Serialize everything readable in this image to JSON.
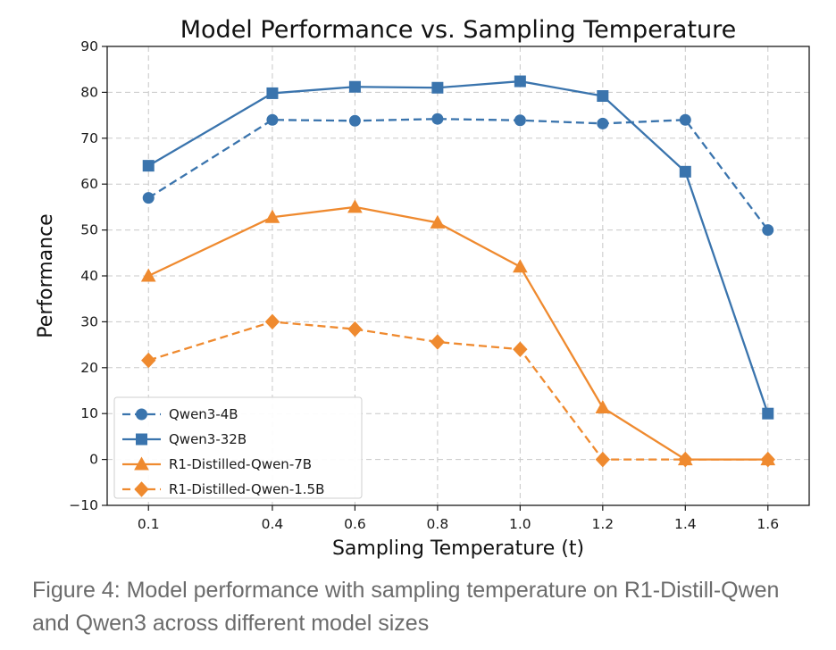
{
  "chart_data": {
    "type": "line",
    "title": "Model Performance vs. Sampling Temperature",
    "xlabel": "Sampling Temperature (t)",
    "ylabel": "Performance",
    "x": [
      0.1,
      0.4,
      0.6,
      0.8,
      1.0,
      1.2,
      1.4,
      1.6
    ],
    "x_tick_labels": [
      "0.1",
      "0.4",
      "0.6",
      "0.8",
      "1.0",
      "1.2",
      "1.4",
      "1.6"
    ],
    "y_ticks": [
      -10,
      0,
      10,
      20,
      30,
      40,
      50,
      60,
      70,
      80,
      90
    ],
    "y_tick_labels": [
      "−10",
      "0",
      "10",
      "20",
      "30",
      "40",
      "50",
      "60",
      "70",
      "80",
      "90"
    ],
    "xlim": [
      0.0,
      1.7
    ],
    "ylim": [
      -10,
      90
    ],
    "grid": true,
    "legend_position": "bottom-left",
    "series": [
      {
        "name": "Qwen3-4B",
        "color": "#3a74ad",
        "line_style": "dashed",
        "marker": "circle",
        "values": [
          57,
          74,
          73.8,
          74.2,
          73.9,
          73.2,
          74,
          50
        ]
      },
      {
        "name": "Qwen3-32B",
        "color": "#3a74ad",
        "line_style": "solid",
        "marker": "square",
        "values": [
          64,
          79.8,
          81.2,
          81,
          82.4,
          79.2,
          62.7,
          10
        ]
      },
      {
        "name": "R1-Distilled-Qwen-7B",
        "color": "#ef8a2f",
        "line_style": "solid",
        "marker": "triangle",
        "values": [
          40,
          52.8,
          55,
          51.6,
          42,
          11.3,
          0,
          0
        ]
      },
      {
        "name": "R1-Distilled-Qwen-1.5B",
        "color": "#ef8a2f",
        "line_style": "dashed",
        "marker": "diamond",
        "values": [
          21.6,
          30,
          28.4,
          25.6,
          24,
          0,
          0,
          0
        ]
      }
    ]
  },
  "caption": "Figure 4: Model performance with sampling temperature on R1-Distill-Qwen and Qwen3 across different model sizes"
}
